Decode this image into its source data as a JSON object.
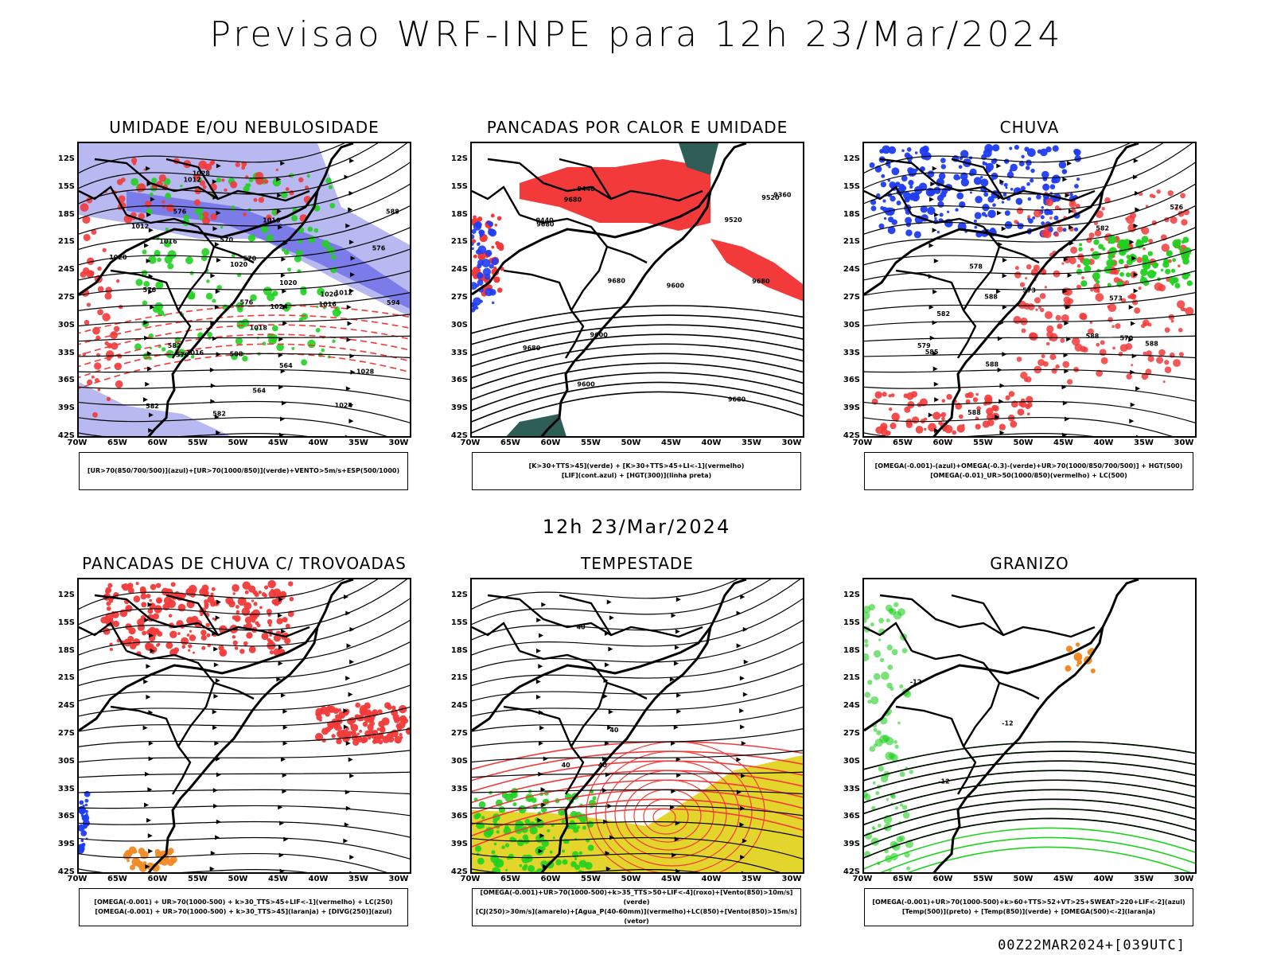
{
  "title": "Previsao WRF-INPE  para 12h 23/Mar/2024",
  "mid_title": "12h 23/Mar/2024",
  "footer": "00Z22MAR2024+[039UTC]",
  "lat_labels": [
    "12S",
    "15S",
    "18S",
    "21S",
    "24S",
    "27S",
    "30S",
    "33S",
    "36S",
    "39S",
    "42S"
  ],
  "lon_labels": [
    "70W",
    "65W",
    "60W",
    "55W",
    "50W",
    "45W",
    "40W",
    "35W",
    "30W"
  ],
  "colors": {
    "red": "#f23a3a",
    "green": "#1fd11f",
    "blue": "#1f3cf2",
    "purple": "#7b7bea",
    "lavender": "#b9b9f2",
    "yellow": "#e3d52b",
    "orange": "#f08a24",
    "darkteal": "#2e5e55"
  },
  "panels": [
    {
      "title": "UMIDADE E/OU NEBULOSIDADE",
      "legend": [
        "[UR>70(850/700/500)](azul)+[UR>70(1000/850)](verde)+VENTO>5m/s+ESP(500/1000)"
      ],
      "contour_labels": [
        "1016",
        "1012",
        "1020",
        "1012",
        "1016",
        "1016",
        "1020",
        "1024",
        "1028",
        "1016",
        "1028",
        "1020",
        "1024",
        "1012",
        "1018",
        "564",
        "570",
        "576",
        "582",
        "588",
        "594",
        "570",
        "576",
        "582",
        "576",
        "582",
        "588",
        "564",
        "570",
        "576",
        "1020"
      ]
    },
    {
      "title": "PANCADAS POR CALOR E UMIDADE",
      "legend": [
        "[K>30+TTS>45](verde) + [K>30+TTS>45+LI<-1](vermelho)",
        "[LIF](cont.azul) + [HGT(300)](linha preta)"
      ],
      "contour_labels": [
        "9680",
        "9680",
        "9680",
        "9680",
        "9680",
        "9680",
        "9600",
        "9600",
        "9600",
        "9520",
        "9520",
        "9440",
        "9440",
        "9360"
      ]
    },
    {
      "title": "CHUVA",
      "legend": [
        "[OMEGA(-0.001)-(azul)+OMEGA(-0.3)-(verde)+UR>70(1000/850/700/500)] + HGT(500)",
        "[OMEGA(-0.01)_UR>50(1000/850)(vermelho) + LC(500)"
      ],
      "contour_labels": [
        "588",
        "588",
        "588",
        "588",
        "588",
        "582",
        "582",
        "576",
        "573",
        "579",
        "578",
        "570",
        "573",
        "585"
      ]
    },
    {
      "title": "PANCADAS DE CHUVA C/ TROVOADAS",
      "legend": [
        "[OMEGA(-0.001) + UR>70(1000-500) + k>30_TTS>45+LIF<-1](vermelho) + LC(250)",
        "[OMEGA(-0.001) + UR>70(1000-500) + k>30_TTS>45](laranja) + [DIVG(250)](azul)"
      ],
      "contour_labels": []
    },
    {
      "title": "TEMPESTADE",
      "legend": [
        "[OMEGA(-0.001)+UR>70(1000-500)+k>35_TTS>50+LIF<-4](roxo)+[Vento(850)>10m/s](verde)",
        "[CJ(250)>30m/s](amarelo)+[Agua_P(40-60mm)](vermelho)+LC(850)+[Vento(850)>15m/s](vetor)"
      ],
      "contour_labels": [
        "40",
        "40",
        "40",
        "40"
      ]
    },
    {
      "title": "GRANIZO",
      "legend": [
        "[OMEGA(-0.001)+UR>70(1000-500)+k>60+TTS>52+VT>25+SWEAT>220+LIF<-2](azul)",
        "[Temp(500)](preto) + [Temp(850)](verde) + [OMEGA(500)<-2](laranja)"
      ],
      "contour_labels": [
        "-12",
        "-12",
        "-12"
      ]
    }
  ]
}
